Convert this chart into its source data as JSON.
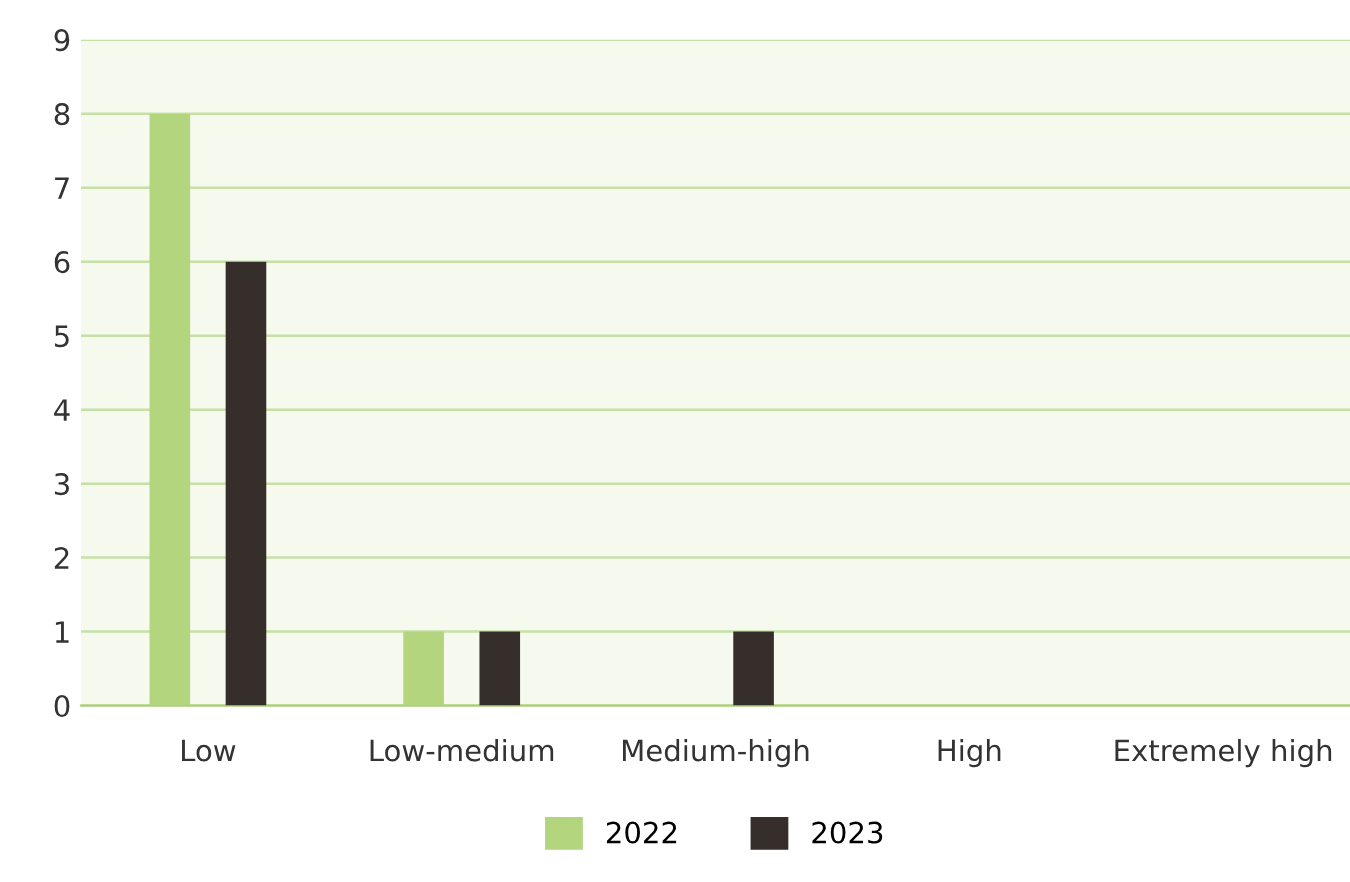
{
  "chart_data": {
    "type": "bar",
    "categories": [
      "Low",
      "Low-medium",
      "Medium-high",
      "High",
      "Extremely high"
    ],
    "series": [
      {
        "name": "2022",
        "color": "#b3d57d",
        "values": [
          8,
          1,
          0,
          0,
          0
        ]
      },
      {
        "name": "2023",
        "color": "#352e2b",
        "values": [
          6,
          1,
          1,
          0,
          0
        ]
      }
    ],
    "ylim": [
      0,
      9
    ],
    "yticks": [
      0,
      1,
      2,
      3,
      4,
      5,
      6,
      7,
      8,
      9
    ],
    "grid": "y",
    "legend": "bottom"
  }
}
